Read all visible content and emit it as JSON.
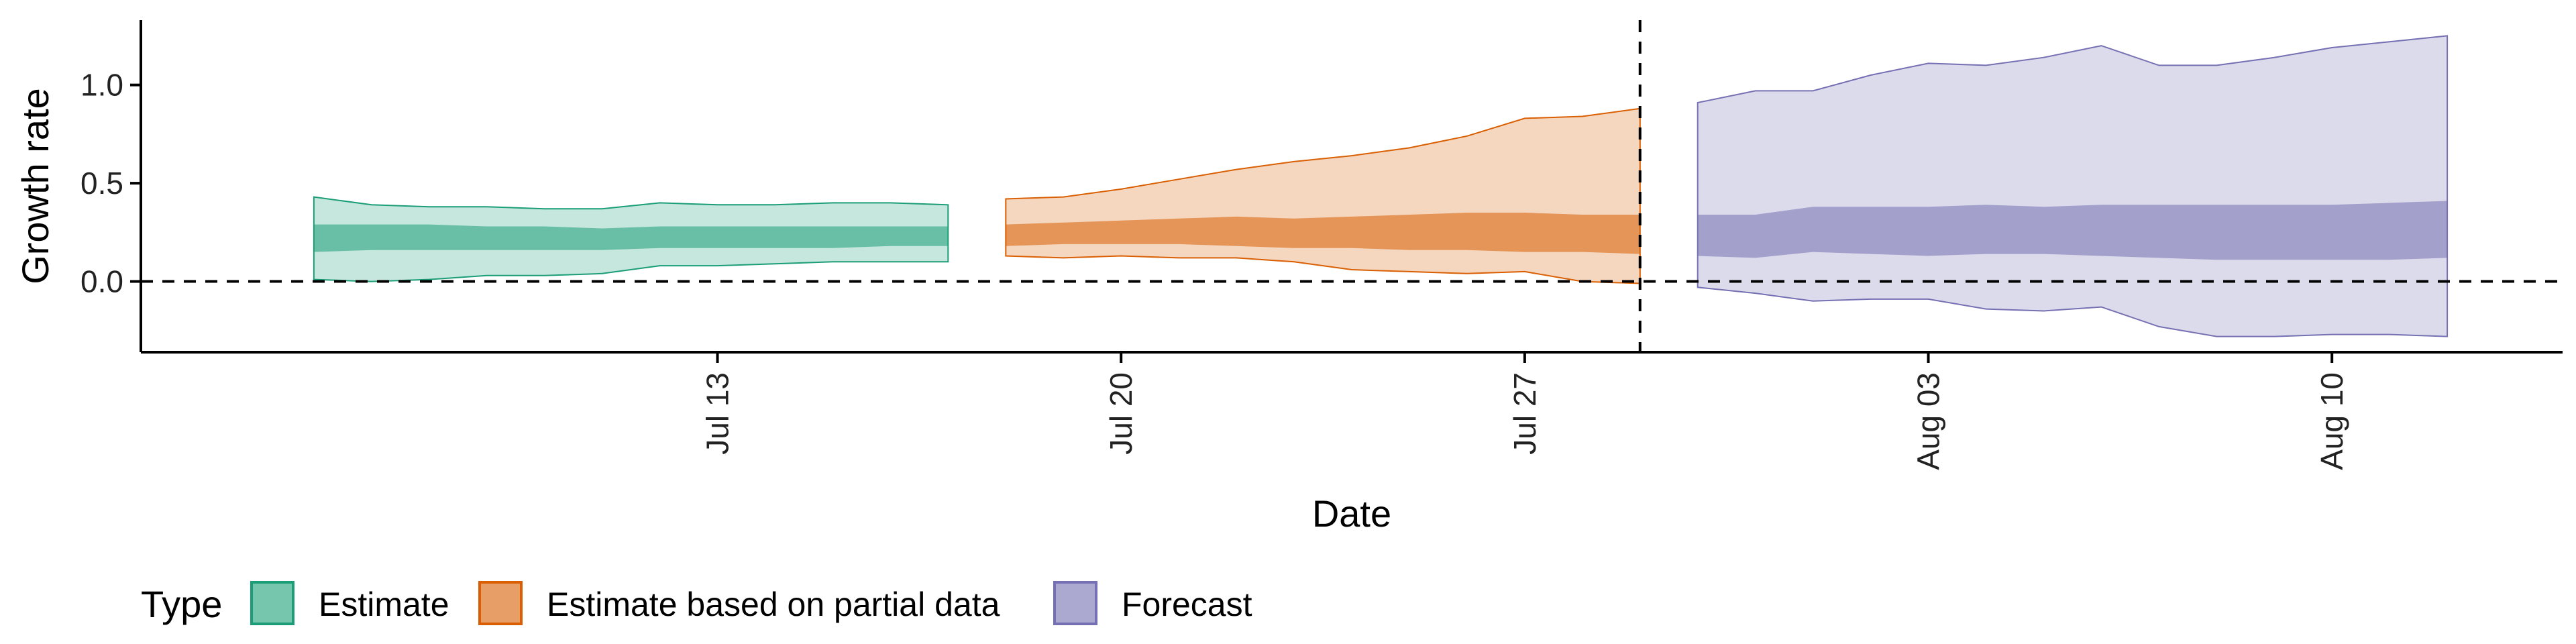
{
  "chart_data": {
    "type": "area",
    "xlabel": "Date",
    "ylabel": "Growth rate",
    "ylim": [
      -0.36,
      1.33
    ],
    "yticks": [
      0.0,
      0.5,
      1.0
    ],
    "ytick_labels": [
      "0.0",
      "0.5",
      "1.0"
    ],
    "xlim": [
      "2020-07-03",
      "2020-08-14"
    ],
    "xticks": [
      "2020-07-13",
      "2020-07-20",
      "2020-07-27",
      "2020-08-03",
      "2020-08-10"
    ],
    "xtick_labels": [
      "Jul 13",
      "Jul 20",
      "Jul 27",
      "Aug 03",
      "Aug 10"
    ],
    "reference_hline": 0.0,
    "reference_vline": "2020-07-29",
    "grid": false,
    "legend": {
      "title": "Type",
      "placement": "bottom-left",
      "entries": [
        {
          "label": "Estimate",
          "color": "#1b9e77"
        },
        {
          "label": "Estimate based on partial data",
          "color": "#d95f02"
        },
        {
          "label": "Forecast",
          "color": "#7570b3"
        }
      ]
    },
    "series": [
      {
        "name": "Estimate",
        "color": "#1b9e77",
        "x": [
          "2020-07-06",
          "2020-07-07",
          "2020-07-08",
          "2020-07-09",
          "2020-07-10",
          "2020-07-11",
          "2020-07-12",
          "2020-07-13",
          "2020-07-14",
          "2020-07-15",
          "2020-07-16",
          "2020-07-17"
        ],
        "outer_low": [
          0.01,
          0.0,
          0.01,
          0.03,
          0.03,
          0.04,
          0.08,
          0.08,
          0.09,
          0.1,
          0.1,
          0.1
        ],
        "outer_high": [
          0.43,
          0.39,
          0.38,
          0.38,
          0.37,
          0.37,
          0.4,
          0.39,
          0.39,
          0.4,
          0.4,
          0.39
        ],
        "inner_low": [
          0.15,
          0.16,
          0.16,
          0.16,
          0.16,
          0.16,
          0.17,
          0.17,
          0.17,
          0.17,
          0.18,
          0.18
        ],
        "inner_high": [
          0.29,
          0.29,
          0.29,
          0.28,
          0.28,
          0.27,
          0.28,
          0.28,
          0.28,
          0.28,
          0.28,
          0.28
        ]
      },
      {
        "name": "Estimate based on partial data",
        "color": "#d95f02",
        "x": [
          "2020-07-18",
          "2020-07-19",
          "2020-07-20",
          "2020-07-21",
          "2020-07-22",
          "2020-07-23",
          "2020-07-24",
          "2020-07-25",
          "2020-07-26",
          "2020-07-27",
          "2020-07-28",
          "2020-07-29"
        ],
        "outer_low": [
          0.13,
          0.12,
          0.13,
          0.12,
          0.12,
          0.1,
          0.06,
          0.05,
          0.04,
          0.05,
          0.0,
          -0.01
        ],
        "outer_high": [
          0.42,
          0.43,
          0.47,
          0.52,
          0.57,
          0.61,
          0.64,
          0.68,
          0.74,
          0.83,
          0.84,
          0.88
        ],
        "inner_low": [
          0.18,
          0.19,
          0.19,
          0.19,
          0.18,
          0.17,
          0.17,
          0.16,
          0.16,
          0.15,
          0.15,
          0.14
        ],
        "inner_high": [
          0.29,
          0.3,
          0.31,
          0.32,
          0.33,
          0.32,
          0.33,
          0.34,
          0.35,
          0.35,
          0.34,
          0.34
        ]
      },
      {
        "name": "Forecast",
        "color": "#7570b3",
        "x": [
          "2020-07-30",
          "2020-07-31",
          "2020-08-01",
          "2020-08-02",
          "2020-08-03",
          "2020-08-04",
          "2020-08-05",
          "2020-08-06",
          "2020-08-07",
          "2020-08-08",
          "2020-08-09",
          "2020-08-10",
          "2020-08-11",
          "2020-08-12"
        ],
        "outer_low": [
          -0.03,
          -0.06,
          -0.1,
          -0.09,
          -0.09,
          -0.14,
          -0.15,
          -0.13,
          -0.23,
          -0.28,
          -0.28,
          -0.27,
          -0.27,
          -0.28
        ],
        "outer_high": [
          0.91,
          0.97,
          0.97,
          1.05,
          1.11,
          1.1,
          1.14,
          1.2,
          1.1,
          1.1,
          1.14,
          1.19,
          1.22,
          1.25
        ],
        "inner_low": [
          0.13,
          0.12,
          0.15,
          0.14,
          0.13,
          0.14,
          0.14,
          0.13,
          0.12,
          0.11,
          0.11,
          0.11,
          0.11,
          0.12
        ],
        "inner_high": [
          0.34,
          0.34,
          0.38,
          0.38,
          0.38,
          0.39,
          0.38,
          0.39,
          0.39,
          0.39,
          0.39,
          0.39,
          0.4,
          0.41
        ]
      }
    ]
  }
}
